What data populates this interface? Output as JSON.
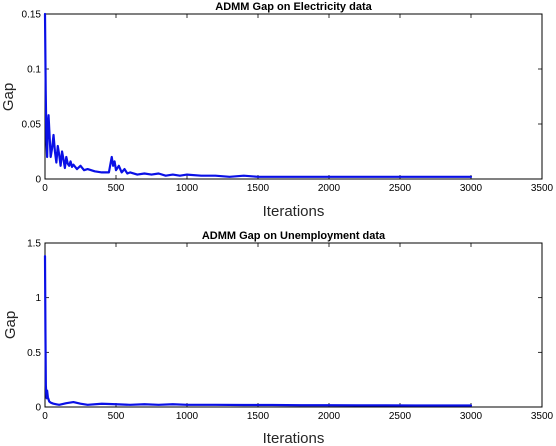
{
  "chart_data": [
    {
      "type": "line",
      "title": "ADMM Gap on Electricity data",
      "xlabel": "Iterations",
      "ylabel": "Gap",
      "xlim": [
        0,
        3500
      ],
      "ylim": [
        0,
        0.15
      ],
      "xticks": [
        "0",
        "500",
        "1000",
        "1500",
        "2000",
        "2500",
        "3000",
        "3500"
      ],
      "yticks": [
        "0",
        "0.05",
        "0.1",
        "0.15"
      ],
      "grid": false,
      "series_color": "#0a10e6",
      "series": [
        {
          "x": [
            0,
            5,
            10,
            15,
            20,
            25,
            30,
            40,
            50,
            60,
            70,
            80,
            90,
            100,
            110,
            120,
            130,
            140,
            150,
            160,
            170,
            180,
            190,
            200,
            225,
            250,
            275,
            300,
            350,
            400,
            450,
            470,
            480,
            490,
            500,
            520,
            540,
            560,
            580,
            600,
            650,
            700,
            750,
            800,
            850,
            900,
            950,
            1000,
            1100,
            1200,
            1300,
            1400,
            1500,
            1750,
            2000,
            2250,
            2500,
            2750,
            3000
          ],
          "y": [
            0.15,
            0.08,
            0.035,
            0.02,
            0.05,
            0.058,
            0.045,
            0.02,
            0.028,
            0.04,
            0.025,
            0.015,
            0.03,
            0.022,
            0.012,
            0.025,
            0.018,
            0.01,
            0.02,
            0.014,
            0.012,
            0.016,
            0.011,
            0.013,
            0.009,
            0.012,
            0.008,
            0.009,
            0.007,
            0.006,
            0.006,
            0.02,
            0.012,
            0.016,
            0.008,
            0.012,
            0.006,
            0.009,
            0.005,
            0.006,
            0.004,
            0.005,
            0.004,
            0.005,
            0.003,
            0.004,
            0.003,
            0.004,
            0.003,
            0.003,
            0.002,
            0.003,
            0.002,
            0.002,
            0.002,
            0.002,
            0.002,
            0.002,
            0.002
          ]
        }
      ]
    },
    {
      "type": "line",
      "title": "ADMM Gap on Unemployment data",
      "xlabel": "Iterations",
      "ylabel": "Gap",
      "xlim": [
        0,
        3500
      ],
      "ylim": [
        0,
        1.5
      ],
      "xticks": [
        "0",
        "500",
        "1000",
        "1500",
        "2000",
        "2500",
        "3000",
        "3500"
      ],
      "yticks": [
        "0",
        "0.5",
        "1",
        "1.5"
      ],
      "grid": false,
      "series_color": "#0a10e6",
      "series": [
        {
          "x": [
            0,
            3,
            6,
            9,
            12,
            15,
            20,
            25,
            30,
            40,
            50,
            60,
            80,
            100,
            150,
            200,
            250,
            300,
            400,
            500,
            600,
            700,
            800,
            900,
            1000,
            1200,
            1400,
            1600,
            1800,
            2000,
            2200,
            2400,
            2600,
            2800,
            3000
          ],
          "y": [
            1.38,
            0.7,
            0.2,
            0.12,
            0.08,
            0.15,
            0.09,
            0.07,
            0.05,
            0.04,
            0.035,
            0.03,
            0.025,
            0.02,
            0.035,
            0.045,
            0.03,
            0.02,
            0.03,
            0.025,
            0.02,
            0.025,
            0.02,
            0.025,
            0.02,
            0.02,
            0.018,
            0.018,
            0.016,
            0.016,
            0.015,
            0.015,
            0.014,
            0.014,
            0.014
          ]
        }
      ]
    }
  ]
}
